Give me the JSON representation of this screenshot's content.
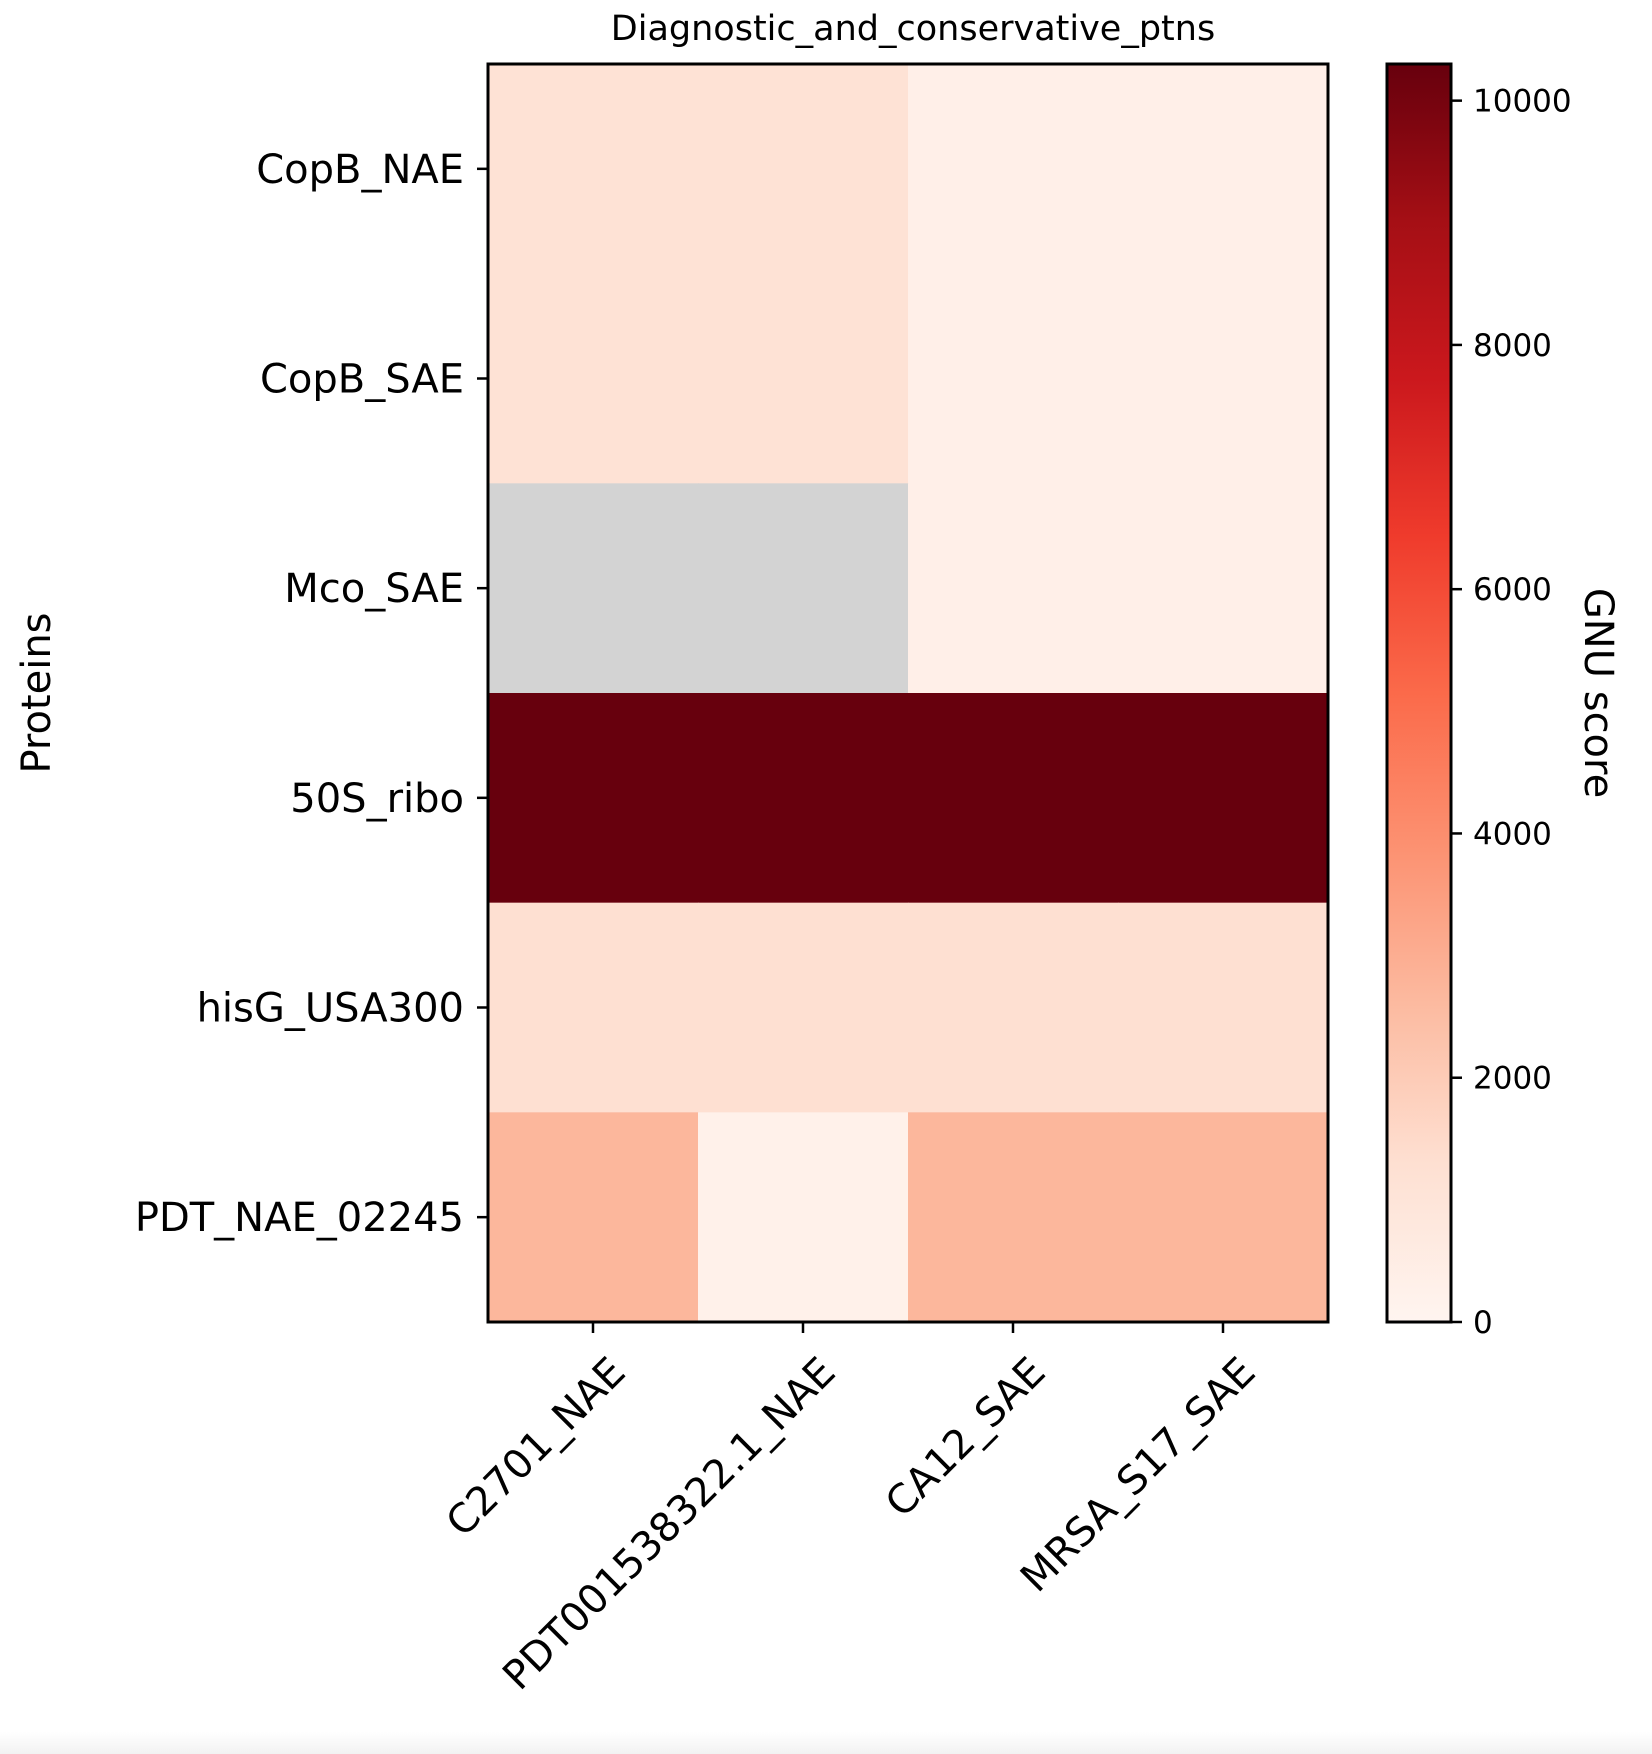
{
  "chart_data": {
    "type": "heatmap",
    "title": "Diagnostic_and_conservative_ptns",
    "xlabel": "",
    "ylabel": "Proteins",
    "rows": [
      "CopB_NAE",
      "CopB_SAE",
      "Mco_SAE",
      "50S_ribo",
      "hisG_USA300",
      "PDT_NAE_02245"
    ],
    "columns": [
      "C2701_NAE",
      "PDT001538322.1_NAE",
      "CA12_SAE",
      "MRSA_S17_SAE"
    ],
    "values": [
      [
        1150,
        1150,
        350,
        350
      ],
      [
        1150,
        1150,
        350,
        350
      ],
      [
        null,
        null,
        350,
        350
      ],
      [
        10300,
        10300,
        10300,
        10300
      ],
      [
        1300,
        1300,
        1300,
        1300
      ],
      [
        2700,
        250,
        2700,
        2700
      ]
    ],
    "missing_color": "#d3d3d3",
    "colormap": "Reds",
    "colorbar": {
      "label": "GNU score",
      "range": [
        0,
        10300
      ],
      "ticks": [
        0,
        2000,
        4000,
        6000,
        8000,
        10000
      ],
      "tick_labels": [
        "0",
        "2000",
        "4000",
        "6000",
        "8000",
        "10000"
      ]
    }
  }
}
